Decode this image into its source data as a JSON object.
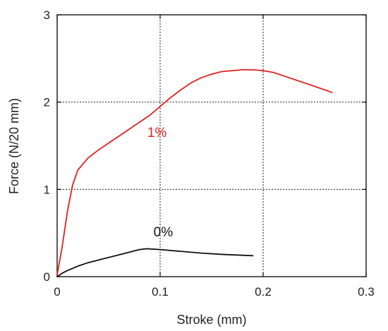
{
  "chart_data": {
    "type": "line",
    "title": "",
    "xlabel": "Stroke (mm)",
    "ylabel": "Force (N/20 mm)",
    "xlim": [
      0,
      0.3
    ],
    "ylim": [
      0,
      3
    ],
    "x_ticks": [
      "0",
      "0.1",
      "0.2",
      "0.3"
    ],
    "y_ticks": [
      "0",
      "1",
      "2",
      "3"
    ],
    "grid": "dashed at x=0.1, 0.2 and y=1, 2",
    "legend": "none (series labeled inline)",
    "series": [
      {
        "name": "1%",
        "color": "#e0221d",
        "points": [
          [
            0.0,
            0.02
          ],
          [
            0.005,
            0.35
          ],
          [
            0.01,
            0.75
          ],
          [
            0.015,
            1.05
          ],
          [
            0.02,
            1.22
          ],
          [
            0.03,
            1.36
          ],
          [
            0.04,
            1.45
          ],
          [
            0.05,
            1.53
          ],
          [
            0.06,
            1.61
          ],
          [
            0.07,
            1.69
          ],
          [
            0.08,
            1.77
          ],
          [
            0.09,
            1.85
          ],
          [
            0.1,
            1.95
          ],
          [
            0.11,
            2.05
          ],
          [
            0.12,
            2.14
          ],
          [
            0.13,
            2.22
          ],
          [
            0.14,
            2.28
          ],
          [
            0.15,
            2.32
          ],
          [
            0.16,
            2.35
          ],
          [
            0.17,
            2.36
          ],
          [
            0.18,
            2.37
          ],
          [
            0.19,
            2.37
          ],
          [
            0.2,
            2.36
          ],
          [
            0.21,
            2.34
          ],
          [
            0.22,
            2.3
          ],
          [
            0.23,
            2.26
          ],
          [
            0.24,
            2.22
          ],
          [
            0.25,
            2.18
          ],
          [
            0.26,
            2.14
          ],
          [
            0.267,
            2.11
          ]
        ]
      },
      {
        "name": "0%",
        "color": "#111111",
        "points": [
          [
            0.0,
            0.0
          ],
          [
            0.005,
            0.04
          ],
          [
            0.01,
            0.07
          ],
          [
            0.02,
            0.12
          ],
          [
            0.03,
            0.16
          ],
          [
            0.04,
            0.19
          ],
          [
            0.05,
            0.22
          ],
          [
            0.06,
            0.25
          ],
          [
            0.07,
            0.28
          ],
          [
            0.08,
            0.31
          ],
          [
            0.087,
            0.32
          ],
          [
            0.1,
            0.31
          ],
          [
            0.12,
            0.29
          ],
          [
            0.14,
            0.27
          ],
          [
            0.16,
            0.255
          ],
          [
            0.18,
            0.245
          ],
          [
            0.19,
            0.24
          ]
        ]
      }
    ],
    "annotations": [
      {
        "text": "1%",
        "x": 0.097,
        "y": 1.6,
        "color": "#e0221d"
      },
      {
        "text": "0%",
        "x": 0.103,
        "y": 0.46,
        "color": "#111111"
      }
    ]
  }
}
